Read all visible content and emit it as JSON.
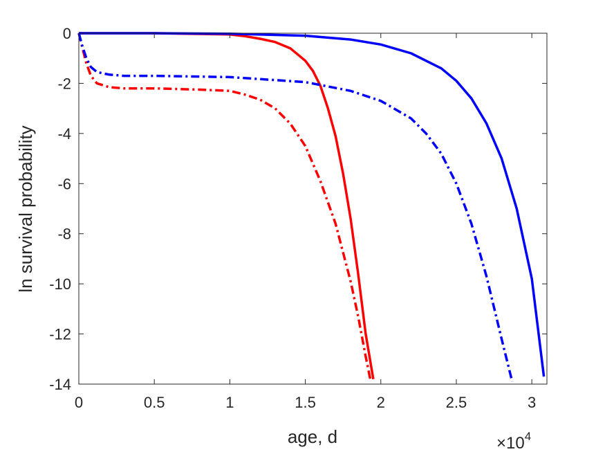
{
  "chart_data": {
    "type": "line",
    "title": "",
    "xlabel": "age, d",
    "ylabel": "ln survival probability",
    "x_multiplier_label": "×10",
    "x_multiplier_exponent": "4",
    "xlim": [
      0,
      3.1
    ],
    "ylim": [
      -14,
      0
    ],
    "xticks": [
      "0",
      "0.5",
      "1",
      "1.5",
      "2",
      "2.5",
      "3"
    ],
    "yticks": [
      "0",
      "-2",
      "-4",
      "-6",
      "-8",
      "-10",
      "-12",
      "-14"
    ],
    "grid": false,
    "legend": "none",
    "series": [
      {
        "color": "#ff0000",
        "style": "solid",
        "x": [
          0,
          0.5,
          1.0,
          1.1,
          1.2,
          1.3,
          1.4,
          1.5,
          1.55,
          1.6,
          1.65,
          1.7,
          1.75,
          1.8,
          1.85,
          1.9,
          1.95
        ],
        "y": [
          0,
          0,
          -0.05,
          -0.12,
          -0.22,
          -0.35,
          -0.6,
          -1.1,
          -1.5,
          -2.1,
          -3.0,
          -4.1,
          -5.6,
          -7.4,
          -9.6,
          -12.0,
          -13.8
        ]
      },
      {
        "color": "#ff0000",
        "style": "dashdot",
        "x": [
          0,
          0.02,
          0.05,
          0.08,
          0.12,
          0.2,
          0.3,
          0.5,
          0.8,
          1.0,
          1.1,
          1.2,
          1.3,
          1.4,
          1.5,
          1.6,
          1.7,
          1.8,
          1.85,
          1.9,
          1.93
        ],
        "y": [
          0,
          -0.5,
          -1.2,
          -1.7,
          -2.0,
          -2.15,
          -2.2,
          -2.2,
          -2.25,
          -2.3,
          -2.45,
          -2.65,
          -3.0,
          -3.6,
          -4.5,
          -5.9,
          -7.6,
          -9.9,
          -11.3,
          -12.9,
          -13.8
        ]
      },
      {
        "color": "#0000ff",
        "style": "solid",
        "x": [
          0,
          0.5,
          1.0,
          1.5,
          1.8,
          2.0,
          2.2,
          2.4,
          2.5,
          2.6,
          2.7,
          2.8,
          2.9,
          3.0,
          3.08
        ],
        "y": [
          0,
          0,
          -0.02,
          -0.1,
          -0.25,
          -0.45,
          -0.8,
          -1.4,
          -1.9,
          -2.6,
          -3.6,
          -5.0,
          -7.0,
          -9.8,
          -13.7
        ]
      },
      {
        "color": "#0000ff",
        "style": "dashdot",
        "x": [
          0,
          0.02,
          0.05,
          0.08,
          0.12,
          0.2,
          0.3,
          0.5,
          1.0,
          1.5,
          1.8,
          2.0,
          2.2,
          2.3,
          2.4,
          2.5,
          2.6,
          2.7,
          2.8,
          2.87
        ],
        "y": [
          0,
          -0.45,
          -1.0,
          -1.35,
          -1.55,
          -1.65,
          -1.7,
          -1.7,
          -1.75,
          -1.95,
          -2.3,
          -2.7,
          -3.4,
          -4.0,
          -4.8,
          -6.0,
          -7.6,
          -9.7,
          -12.2,
          -13.9
        ]
      }
    ]
  }
}
